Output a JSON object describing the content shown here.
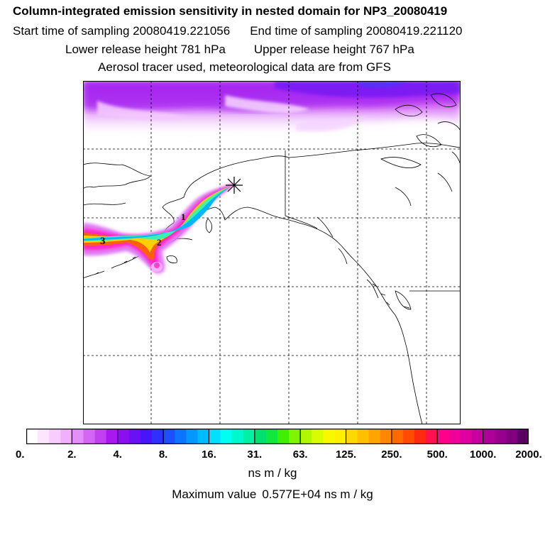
{
  "title": "Column-integrated emission sensitivity in nested domain for NP3_20080419",
  "sampling": {
    "start": "Start time of sampling 20080419.221056",
    "end": "End time of sampling 20080419.221120"
  },
  "release": {
    "lower": "Lower release height  781 hPa",
    "upper": "Upper release height  767 hPa"
  },
  "tracer_line": "Aerosol tracer used, meteorological data are from GFS",
  "map": {
    "labels": [
      "3",
      "1",
      "2"
    ],
    "release_marker": "star-marker",
    "gridlines": "dashed"
  },
  "colorbar": {
    "tick_labels": [
      "0.",
      "2.",
      "4.",
      "8.",
      "16.",
      "31.",
      "63.",
      "125.",
      "250.",
      "500.",
      "1000.",
      "2000."
    ],
    "units": "ns m / kg",
    "colors": [
      "#ffffff",
      "#fce6ff",
      "#f8ccff",
      "#f0b0fb",
      "#e48ef8",
      "#d466f5",
      "#c040f2",
      "#a818ef",
      "#8a10f0",
      "#6a10f4",
      "#4814f8",
      "#3030fc",
      "#1c50ff",
      "#0c74ff",
      "#0498ff",
      "#00bcff",
      "#00e0ff",
      "#00fff0",
      "#00f8cc",
      "#00f0a4",
      "#00e070",
      "#10e840",
      "#40f000",
      "#80f400",
      "#b0f800",
      "#d8fc00",
      "#f8f800",
      "#fff000",
      "#ffd800",
      "#ffc000",
      "#ffa400",
      "#ff8800",
      "#ff6a00",
      "#ff4c00",
      "#ff2810",
      "#ff1050",
      "#ff0088",
      "#f00098",
      "#e000a0",
      "#c800a0",
      "#b0009a",
      "#980090",
      "#800080",
      "#5a0060"
    ]
  },
  "max_value": {
    "label": "Maximum value",
    "value": "0.577E+04 ns m / kg"
  }
}
